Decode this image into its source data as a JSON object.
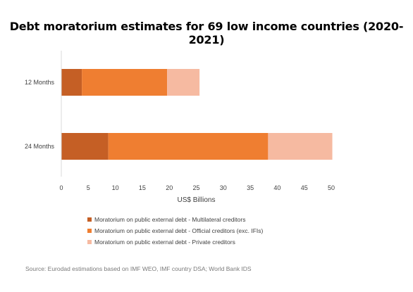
{
  "chart_data": {
    "type": "bar",
    "orientation": "horizontal",
    "stacked": true,
    "title": "Debt moratorium estimates for 69 low income countries (2020-2021)",
    "xlabel": "US$ Billions",
    "ylabel": "",
    "xlim": [
      0,
      50
    ],
    "xticks": [
      0,
      5,
      10,
      15,
      20,
      25,
      30,
      35,
      40,
      45,
      50
    ],
    "categories": [
      "12 Months",
      "24 Months"
    ],
    "series": [
      {
        "name": "Moratorium on public external debt - Multilateral creditors",
        "color": "#c55f25",
        "values": [
          3.8,
          8.7
        ]
      },
      {
        "name": "Moratorium on public external debt - Official creditors (exc. IFIs)",
        "color": "#ef7e31",
        "values": [
          15.8,
          29.6
        ]
      },
      {
        "name": "Moratorium on public external debt - Private creditors",
        "color": "#f6baa1",
        "values": [
          6.0,
          11.9
        ]
      }
    ],
    "grid": false,
    "legend_position": "bottom"
  },
  "source": "Source: Eurodad estimations based on IMF WEO, IMF country DSA; World Bank IDS"
}
